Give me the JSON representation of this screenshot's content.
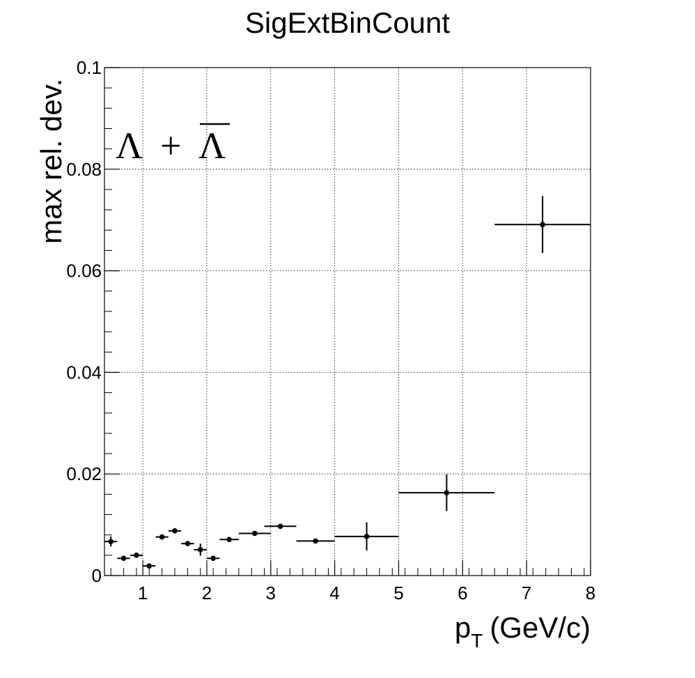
{
  "chart_data": {
    "type": "scatter",
    "title": "SigExtBinCount",
    "xlabel": "p",
    "xlabel_sub": "T",
    "xlabel_unit": "(GeV/c)",
    "ylabel": "max rel. dev.",
    "annotation": {
      "left": "Λ",
      "op": "+",
      "right": "Λ"
    },
    "xlim": [
      0.4,
      8
    ],
    "ylim": [
      0,
      0.1
    ],
    "x_ticks": [
      "1",
      "2",
      "3",
      "4",
      "5",
      "6",
      "7",
      "8"
    ],
    "y_ticks": [
      "0",
      "0.02",
      "0.04",
      "0.06",
      "0.08",
      "0.1"
    ],
    "grid": true,
    "points": [
      {
        "x": 0.5,
        "xerr": 0.1,
        "y": 0.0067,
        "yerr": 0.001
      },
      {
        "x": 0.7,
        "xerr": 0.1,
        "y": 0.0034,
        "yerr": 0.0003
      },
      {
        "x": 0.9,
        "xerr": 0.1,
        "y": 0.004,
        "yerr": 0.0003
      },
      {
        "x": 1.1,
        "xerr": 0.1,
        "y": 0.0019,
        "yerr": 0.0003
      },
      {
        "x": 1.3,
        "xerr": 0.1,
        "y": 0.0076,
        "yerr": 0.0003
      },
      {
        "x": 1.5,
        "xerr": 0.1,
        "y": 0.0088,
        "yerr": 0.0003
      },
      {
        "x": 1.7,
        "xerr": 0.1,
        "y": 0.0063,
        "yerr": 0.0004
      },
      {
        "x": 1.9,
        "xerr": 0.1,
        "y": 0.0051,
        "yerr": 0.0012
      },
      {
        "x": 2.1,
        "xerr": 0.1,
        "y": 0.0034,
        "yerr": 0.0003
      },
      {
        "x": 2.35,
        "xerr": 0.15,
        "y": 0.0071,
        "yerr": 0.0003
      },
      {
        "x": 2.75,
        "xerr": 0.25,
        "y": 0.0083,
        "yerr": 0.0003
      },
      {
        "x": 3.15,
        "xerr": 0.25,
        "y": 0.0097,
        "yerr": 0.0003
      },
      {
        "x": 3.7,
        "xerr": 0.3,
        "y": 0.0068,
        "yerr": 0.0003
      },
      {
        "x": 4.5,
        "xerr": 0.5,
        "y": 0.0077,
        "yerr": 0.0028
      },
      {
        "x": 5.75,
        "xerr": 0.75,
        "y": 0.0163,
        "yerr": 0.0036
      },
      {
        "x": 7.25,
        "xerr": 0.75,
        "y": 0.0691,
        "yerr": 0.0056
      }
    ]
  }
}
